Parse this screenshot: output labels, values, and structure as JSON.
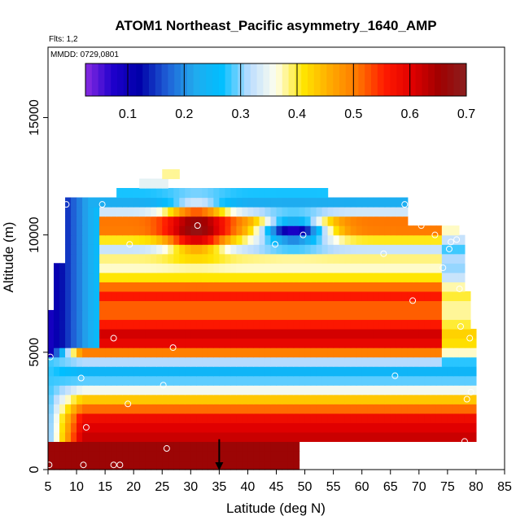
{
  "chart_data": {
    "type": "heatmap",
    "title": "ATOM1 Northeast_Pacific asymmetry_1640_AMP",
    "flights_note": "Flts: 1,2",
    "date_note": "MMDD: 0729,0801",
    "xlabel": "Latitude (deg N)",
    "ylabel": "Altitude (m)",
    "xlim": [
      5,
      85
    ],
    "ylim": [
      0,
      18000
    ],
    "x_ticks": [
      5,
      10,
      15,
      20,
      25,
      30,
      35,
      40,
      45,
      50,
      55,
      60,
      65,
      70,
      75,
      80,
      85
    ],
    "y_ticks": [
      0,
      5000,
      10000,
      15000
    ],
    "y_tick_labels": [
      "0",
      "5000",
      "10000",
      "15000"
    ],
    "colorbar": {
      "min": 0.025,
      "max": 0.7,
      "ticks": [
        0.1,
        0.2,
        0.3,
        0.4,
        0.5,
        0.6,
        0.7
      ],
      "tick_labels": [
        "0.1",
        "0.2",
        "0.3",
        "0.4",
        "0.5",
        "0.6",
        "0.7"
      ],
      "colors": [
        "#8a2be2",
        "#1e00cc",
        "#0000a8",
        "#1f5fd6",
        "#22aaee",
        "#00bfff",
        "#b9dcff",
        "#ffffee",
        "#ffe600",
        "#ffaa00",
        "#ff7700",
        "#ff1a00",
        "#e00000",
        "#a00000",
        "#8b2020"
      ]
    },
    "lat_bin_width": 1,
    "alt_bin_height": 400,
    "surface_layer": {
      "lat_min": 5,
      "lat_max": 49,
      "alt_min": 0,
      "alt_max": 1100,
      "value": 0.66
    },
    "top_layers": [
      {
        "lat_min": 17,
        "lat_max": 54,
        "alt_min": 11500,
        "alt_max": 11900
      },
      {
        "lat_min": 21,
        "lat_max": 26,
        "alt_min": 11900,
        "alt_max": 12500
      },
      {
        "lat_min": 25,
        "lat_max": 28,
        "alt_min": 12500,
        "alt_max": 13000
      }
    ],
    "profile_markers": [
      {
        "lat": 5.4,
        "alt": 4800
      },
      {
        "lat": 8.2,
        "alt": 11300
      },
      {
        "lat": 10.8,
        "alt": 3900
      },
      {
        "lat": 11.7,
        "alt": 1800
      },
      {
        "lat": 11.2,
        "alt": 200
      },
      {
        "lat": 16.5,
        "alt": 200
      },
      {
        "lat": 17.6,
        "alt": 200
      },
      {
        "lat": 5.2,
        "alt": 200
      },
      {
        "lat": 14.5,
        "alt": 11300
      },
      {
        "lat": 16.5,
        "alt": 5600
      },
      {
        "lat": 19.0,
        "alt": 2800
      },
      {
        "lat": 19.3,
        "alt": 9600
      },
      {
        "lat": 25.2,
        "alt": 3600
      },
      {
        "lat": 25.8,
        "alt": 900
      },
      {
        "lat": 26.9,
        "alt": 5200
      },
      {
        "lat": 31.2,
        "alt": 10400
      },
      {
        "lat": 44.8,
        "alt": 9600
      },
      {
        "lat": 49.7,
        "alt": 10000
      },
      {
        "lat": 63.8,
        "alt": 9200
      },
      {
        "lat": 65.8,
        "alt": 4000
      },
      {
        "lat": 67.5,
        "alt": 11300
      },
      {
        "lat": 68.9,
        "alt": 7200
      },
      {
        "lat": 70.4,
        "alt": 10400
      },
      {
        "lat": 72.8,
        "alt": 10000
      },
      {
        "lat": 74.2,
        "alt": 8600
      },
      {
        "lat": 75.6,
        "alt": 9700
      },
      {
        "lat": 75.3,
        "alt": 9400
      },
      {
        "lat": 76.6,
        "alt": 9800
      },
      {
        "lat": 77.1,
        "alt": 7700
      },
      {
        "lat": 77.3,
        "alt": 6100
      },
      {
        "lat": 78.9,
        "alt": 5600
      },
      {
        "lat": 79.1,
        "alt": 3300
      },
      {
        "lat": 78.4,
        "alt": 3000
      },
      {
        "lat": 78.0,
        "alt": 1200
      }
    ],
    "arrow_marker": {
      "lat": 35,
      "alt_top": 600,
      "alt_bottom": 0
    }
  }
}
